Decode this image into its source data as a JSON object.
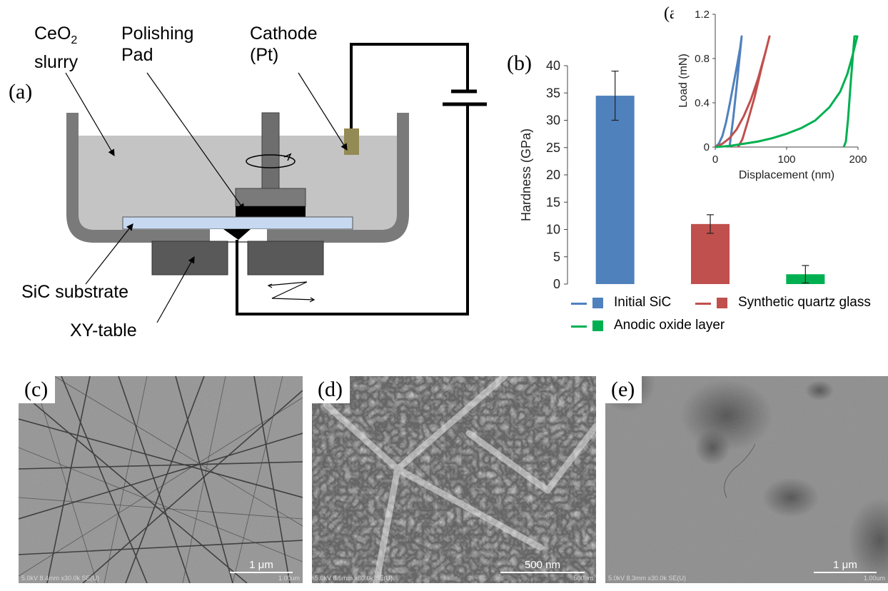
{
  "schematic": {
    "panel_label": "(a)",
    "labels": {
      "ceo2_line1": "CeO",
      "ceo2_sub": "2",
      "ceo2_line2": "slurry",
      "pad_line1": "Polishing",
      "pad_line2": "Pad",
      "cathode_line1": "Cathode",
      "cathode_line2": "(Pt)",
      "substrate": "SiC substrate",
      "table": "XY-table"
    }
  },
  "hardness_chart": {
    "panel_label": "(b)",
    "chart_data": {
      "type": "bar",
      "categories": [
        "Initial SiC",
        "Synthetic quartz glass",
        "Anodic oxide layer"
      ],
      "values": [
        34.5,
        11.0,
        1.8
      ],
      "errors": [
        4.5,
        1.7,
        1.6
      ],
      "colors": [
        "#4f81bd",
        "#c0504d",
        "#00b050"
      ],
      "ylabel": "Hardness (GPa)",
      "ylim": [
        0,
        40
      ],
      "yticks": [
        0,
        5,
        10,
        15,
        20,
        25,
        30,
        35,
        40
      ],
      "legend": [
        {
          "name": "Initial SiC",
          "color": "#4f81bd"
        },
        {
          "name": "Synthetic quartz glass",
          "color": "#c0504d"
        },
        {
          "name": "Anodic oxide layer",
          "color": "#00b050"
        }
      ]
    }
  },
  "inset_chart": {
    "panel_label": "(a)",
    "chart_data": {
      "type": "line",
      "xlabel": "Displacement (nm)",
      "ylabel": "Load (mN)",
      "xlim": [
        0,
        200
      ],
      "ylim": [
        0,
        1.2
      ],
      "xticks": [
        0,
        100,
        200
      ],
      "yticks": [
        0,
        0.4,
        0.8,
        1.2
      ],
      "series": [
        {
          "color": "#4f81bd",
          "x": [
            0,
            5,
            10,
            15,
            20,
            25,
            30,
            35,
            37,
            30,
            25,
            20
          ],
          "y": [
            0,
            0.03,
            0.1,
            0.22,
            0.38,
            0.55,
            0.72,
            0.9,
            1.0,
            0.55,
            0.25,
            0
          ]
        },
        {
          "color": "#c0504d",
          "x": [
            0,
            10,
            20,
            30,
            40,
            50,
            60,
            70,
            76,
            65,
            55,
            45,
            38,
            32
          ],
          "y": [
            0,
            0.03,
            0.08,
            0.16,
            0.28,
            0.43,
            0.62,
            0.85,
            1.0,
            0.72,
            0.45,
            0.22,
            0.07,
            0
          ]
        },
        {
          "color": "#00b050",
          "x": [
            0,
            20,
            40,
            60,
            80,
            100,
            120,
            140,
            160,
            175,
            185,
            192,
            197,
            199,
            195,
            190,
            186,
            183,
            180
          ],
          "y": [
            0,
            0.01,
            0.03,
            0.05,
            0.08,
            0.12,
            0.17,
            0.24,
            0.36,
            0.5,
            0.66,
            0.82,
            0.95,
            1.0,
            1.0,
            0.6,
            0.25,
            0.05,
            0
          ]
        }
      ]
    }
  },
  "sem_images": [
    {
      "panel_label": "(c)",
      "scale_text": "1 μm",
      "info_text": "5.0kV 8.4mm x30.0k SE(U)",
      "info_right": "1.00um"
    },
    {
      "panel_label": "(d)",
      "scale_text": "500 nm",
      "info_text": "5.0kV 8.6mm x80.0k SE(U)",
      "info_right": "500nm"
    },
    {
      "panel_label": "(e)",
      "scale_text": "1 μm",
      "info_text": "5.0kV 8.3mm x30.0k SE(U)",
      "info_right": "1.00um"
    }
  ]
}
